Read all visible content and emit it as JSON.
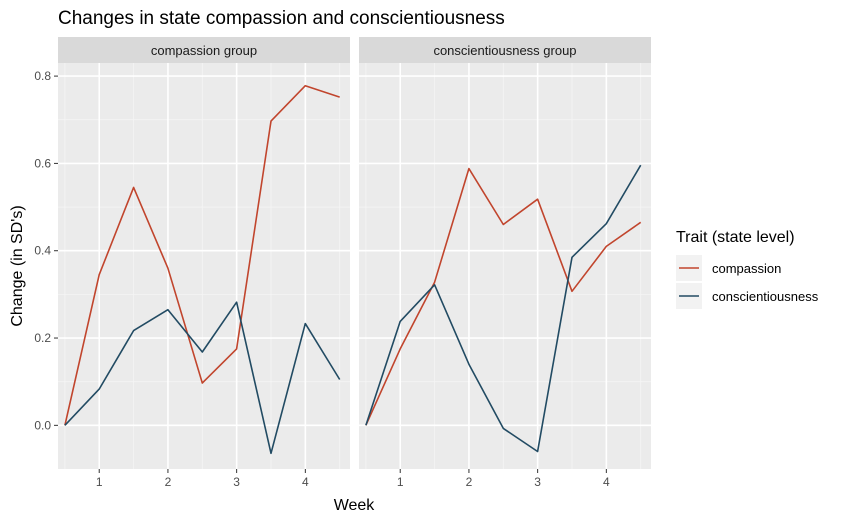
{
  "chart_data": {
    "type": "line",
    "title": "Changes in state compassion and conscientiousness",
    "xlabel": "Week",
    "ylabel": "Change (in SD's)",
    "xlim": [
      0.4,
      4.65
    ],
    "ylim": [
      -0.1,
      0.83
    ],
    "x_ticks": [
      1,
      2,
      3,
      4
    ],
    "y_ticks": [
      0.0,
      0.2,
      0.4,
      0.6,
      0.8
    ],
    "y_tick_labels": [
      "0.0",
      "0.2",
      "0.4",
      "0.6",
      "0.8"
    ],
    "grid": true,
    "legend": {
      "title": "Trait (state level)",
      "placement": "right",
      "entries": [
        {
          "name": "compassion",
          "color": "#c1452d"
        },
        {
          "name": "conscientiousness",
          "color": "#224b63"
        }
      ]
    },
    "panels": [
      {
        "strip": "compassion group",
        "x": [
          0.5,
          1.0,
          1.5,
          2.0,
          2.5,
          3.0,
          3.5,
          4.0,
          4.5
        ],
        "series": [
          {
            "name": "compassion",
            "values": [
              0.0,
              0.345,
              0.545,
              0.36,
              0.097,
              0.175,
              0.697,
              0.778,
              0.752
            ]
          },
          {
            "name": "conscientiousness",
            "values": [
              0.0,
              0.083,
              0.217,
              0.265,
              0.168,
              0.282,
              -0.064,
              0.233,
              0.105
            ]
          }
        ]
      },
      {
        "strip": "conscientiousness group",
        "x": [
          0.5,
          1.0,
          1.5,
          2.0,
          2.5,
          3.0,
          3.5,
          4.0,
          4.5
        ],
        "series": [
          {
            "name": "compassion",
            "values": [
              0.0,
              0.175,
              0.328,
              0.588,
              0.46,
              0.518,
              0.307,
              0.41,
              0.465
            ]
          },
          {
            "name": "conscientiousness",
            "values": [
              0.0,
              0.238,
              0.322,
              0.14,
              -0.007,
              -0.06,
              0.385,
              0.462,
              0.596
            ]
          }
        ]
      }
    ]
  }
}
